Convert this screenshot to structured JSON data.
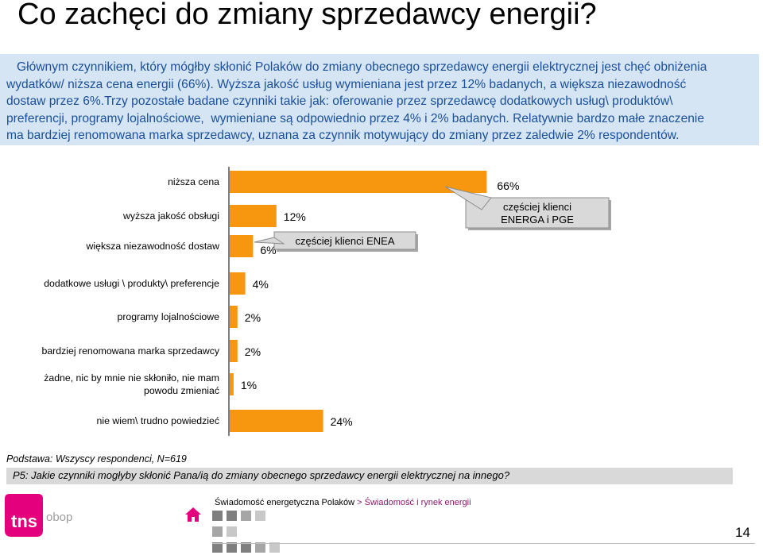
{
  "page": {
    "title": "Co zachęci do zmiany sprzedawcy energii?",
    "summary_lines": [
      "   Głównym czynnikiem, który mógłby skłonić Polaków do zmiany obecnego sprzedawcy energii elektrycznej jest chęć obniżenia",
      "wydatków/ niższa cena energii (66%). Wyższa jakość usług wymieniana jest przez 12% badanych, a większa niezawodność",
      "dostaw przez 6%.Trzy pozostałe badane czynniki takie jak: oferowanie przez sprzedawcę dodatkowych usług\\ produktów\\",
      "preferencji, programy lojalnościowe,  wymieniane są odpowiednio przez 4% i 2% badanych. Relatywnie bardzo małe znaczenie",
      "ma bardziej renomowana marka sprzedawcy, uznana za czynnik motywujący do zmiany przez zaledwie 2% respondentów."
    ],
    "base_note": "Podstawa: Wszyscy respondenci, N=619",
    "question": "P5:  Jakie czynniki mogłyby skłonić Pana/ią do zmiany obecnego sprzedawcy energii elektrycznej na innego?",
    "footer": {
      "crumb_1": "Świadomość energetyczna Polaków",
      "separator": ">",
      "crumb_2": "Świadomość i rynek energii",
      "page_number": "14"
    },
    "logo_text": "tns obop",
    "brand_colors": {
      "pink": "#e4007c",
      "gray": "#9d9d9d"
    }
  },
  "chart_data": {
    "type": "bar",
    "orientation": "horizontal",
    "categories": [
      "niższa cena",
      "wyższa jakość obsługi",
      "większa niezawodność dostaw",
      "dodatkowe usługi \\ produkty\\ preferencje",
      "programy lojalnościowe",
      "bardziej renomowana marka sprzedawcy",
      "żadne, nic by mnie nie skłoniło, nie mam powodu zmieniać",
      "nie wiem\\ trudno powiedzieć"
    ],
    "values": [
      66,
      12,
      6,
      4,
      2,
      2,
      1,
      24
    ],
    "value_labels": [
      "66%",
      "12%",
      "6%",
      "4%",
      "2%",
      "2%",
      "1%",
      "24%"
    ],
    "bar_color": "#f7960f",
    "xlim": [
      0,
      100
    ],
    "grid": false,
    "annotations": [
      {
        "text": "częściej klienci ENEA",
        "category": "większa niezawodność dostaw"
      },
      {
        "text": "częściej klienci\nENERGA i PGE",
        "category": "niższa cena"
      }
    ]
  }
}
